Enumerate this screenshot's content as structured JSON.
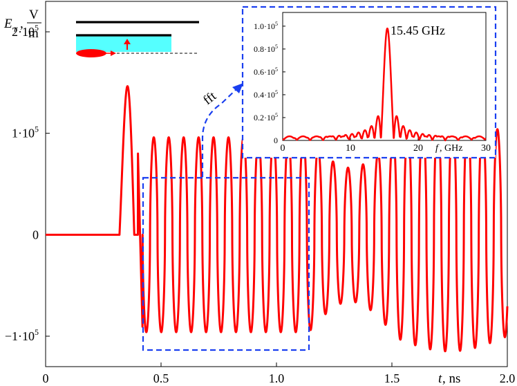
{
  "chart_data": [
    {
      "type": "line",
      "title": "",
      "xlabel": "t,  ns",
      "ylabel": "E_r, V/m",
      "ylabel_sym": "E",
      "ylabel_sub": "r",
      "ylabel_comma": ",",
      "ylabel_unit_num": "V",
      "ylabel_unit_den": "m",
      "xlabel_sym": "t",
      "xlabel_unit": ",  ns",
      "xlim": [
        0,
        2.0
      ],
      "ylim": [
        -130000,
        230000
      ],
      "x_ticks": [
        0,
        0.5,
        1.0,
        1.5,
        2.0
      ],
      "x_tick_labels": [
        "0",
        "0.5",
        "1.0",
        "1.5",
        "2.0"
      ],
      "y_ticks": [
        200000,
        100000,
        0,
        -100000
      ],
      "y_tick_labels": [
        {
          "mant": "2·10",
          "exp": "5"
        },
        {
          "mant": "1·10",
          "exp": "5"
        },
        {
          "mant": "0",
          "exp": ""
        },
        {
          "mant": "−1·10",
          "exp": "5"
        }
      ],
      "series": [
        {
          "color": "#ff0000",
          "segments": {
            "baseline_until": 0.32,
            "pulse_peak": {
              "x": 0.38,
              "y": 160000
            },
            "first_min": {
              "x": 0.42,
              "y": -95000
            },
            "frequency_GHz": 15.45,
            "points": [
              [
                0.0,
                0
              ],
              [
                0.32,
                0
              ],
              [
                0.38,
                160000
              ],
              [
                0.42,
                -95000
              ],
              [
                1.0,
                95000
              ],
              [
                1.13,
                -98000
              ],
              [
                1.15,
                80000
              ],
              [
                1.5,
                -100000
              ],
              [
                1.7,
                110000
              ],
              [
                1.73,
                -120000
              ],
              [
                1.95,
                118000
              ],
              [
                1.99,
                -110000
              ]
            ]
          }
        }
      ],
      "annotation": "fft",
      "grid": false
    },
    {
      "type": "line",
      "title": "",
      "xlabel": "f,  GHz",
      "xlabel_sym": "f",
      "xlabel_unit": ",  GHz",
      "ylabel": "",
      "xlim": [
        0,
        30
      ],
      "ylim": [
        0,
        112000
      ],
      "x_ticks": [
        0,
        10,
        20,
        30
      ],
      "x_tick_labels": [
        "0",
        "10",
        "20",
        "30"
      ],
      "y_ticks": [
        0,
        20000,
        40000,
        60000,
        80000,
        100000
      ],
      "y_tick_labels": [
        {
          "mant": "0",
          "exp": ""
        },
        {
          "mant": "0.2·10",
          "exp": "5"
        },
        {
          "mant": "0.4·10",
          "exp": "5"
        },
        {
          "mant": "0.6·10",
          "exp": "5"
        },
        {
          "mant": "0.8·10",
          "exp": "5"
        },
        {
          "mant": "1.0·10",
          "exp": "5"
        }
      ],
      "peak": {
        "x": 15.45,
        "y": 98000,
        "label": "15.45 GHz"
      },
      "series": [
        {
          "color": "#ff0000",
          "shape": "sinc",
          "center": 15.45,
          "peak": 98000
        }
      ],
      "grid": false
    }
  ],
  "colors": {
    "signal": "#ff0000",
    "inset_frame": "#1a3ff0",
    "schematic_fill": "#55ffff",
    "axes": "#000000"
  }
}
